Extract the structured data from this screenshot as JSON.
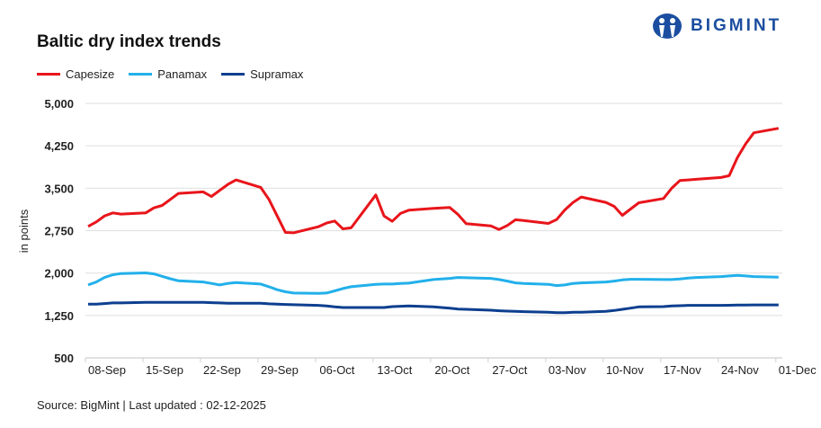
{
  "header": {
    "logo_text": "BIGMINT"
  },
  "source": "Source: BigMint | Last updated : 02-12-2025",
  "chart_data": {
    "type": "line",
    "title": "Baltic dry index trends",
    "xlabel": "",
    "ylabel": "in points",
    "ylim": [
      500,
      5000
    ],
    "yticks": [
      "500",
      "1,250",
      "2,000",
      "2,750",
      "3,500",
      "4,250",
      "5,000"
    ],
    "ytick_values": [
      500,
      1250,
      2000,
      2750,
      3500,
      4250,
      5000
    ],
    "xticks": [
      "08-Sep",
      "15-Sep",
      "22-Sep",
      "29-Sep",
      "06-Oct",
      "13-Oct",
      "20-Oct",
      "27-Oct",
      "03-Nov",
      "10-Nov",
      "17-Nov",
      "24-Nov",
      "01-Dec"
    ],
    "xtick_dates": [
      "2025-09-08",
      "2025-09-15",
      "2025-09-22",
      "2025-09-29",
      "2025-10-06",
      "2025-10-13",
      "2025-10-20",
      "2025-10-27",
      "2025-11-03",
      "2025-11-10",
      "2025-11-17",
      "2025-11-24",
      "2025-12-01"
    ],
    "grid": true,
    "legend": "top-left",
    "x": [
      "2025-09-08",
      "2025-09-09",
      "2025-09-10",
      "2025-09-11",
      "2025-09-12",
      "2025-09-15",
      "2025-09-16",
      "2025-09-17",
      "2025-09-18",
      "2025-09-19",
      "2025-09-22",
      "2025-09-23",
      "2025-09-24",
      "2025-09-25",
      "2025-09-26",
      "2025-09-29",
      "2025-09-30",
      "2025-10-01",
      "2025-10-02",
      "2025-10-03",
      "2025-10-06",
      "2025-10-07",
      "2025-10-08",
      "2025-10-09",
      "2025-10-10",
      "2025-10-13",
      "2025-10-14",
      "2025-10-15",
      "2025-10-16",
      "2025-10-17",
      "2025-10-20",
      "2025-10-21",
      "2025-10-22",
      "2025-10-23",
      "2025-10-24",
      "2025-10-27",
      "2025-10-28",
      "2025-10-29",
      "2025-10-30",
      "2025-10-31",
      "2025-11-03",
      "2025-11-04",
      "2025-11-05",
      "2025-11-06",
      "2025-11-07",
      "2025-11-10",
      "2025-11-11",
      "2025-11-12",
      "2025-11-13",
      "2025-11-14",
      "2025-11-17",
      "2025-11-18",
      "2025-11-19",
      "2025-11-20",
      "2025-11-21",
      "2025-11-24",
      "2025-11-25",
      "2025-11-26",
      "2025-11-27",
      "2025-11-28",
      "2025-12-01"
    ],
    "series": [
      {
        "name": "Capesize",
        "color": "#e8151b",
        "values": [
          2824,
          2904,
          3010,
          3063,
          3042,
          3063,
          3153,
          3196,
          3302,
          3408,
          3435,
          3355,
          3461,
          3567,
          3647,
          3515,
          3302,
          3010,
          2718,
          2712,
          2819,
          2883,
          2920,
          2782,
          2800,
          3381,
          3010,
          2915,
          3053,
          3111,
          3143,
          3153,
          3158,
          3037,
          2872,
          2835,
          2771,
          2840,
          2942,
          2930,
          2878,
          2946,
          3116,
          3249,
          3345,
          3249,
          3180,
          3021,
          3132,
          3243,
          3318,
          3499,
          3636,
          3647,
          3658,
          3690,
          3722,
          4045,
          4284,
          4480,
          4560
        ]
      },
      {
        "name": "Panamax",
        "color": "#22b0ea",
        "values": [
          1789,
          1842,
          1922,
          1970,
          1992,
          2002,
          1985,
          1943,
          1900,
          1863,
          1842,
          1816,
          1789,
          1816,
          1832,
          1805,
          1757,
          1705,
          1668,
          1646,
          1641,
          1646,
          1684,
          1726,
          1757,
          1800,
          1805,
          1805,
          1816,
          1821,
          1885,
          1896,
          1906,
          1922,
          1917,
          1906,
          1885,
          1858,
          1826,
          1816,
          1800,
          1778,
          1789,
          1816,
          1826,
          1842,
          1858,
          1879,
          1890,
          1890,
          1885,
          1885,
          1896,
          1911,
          1922,
          1938,
          1949,
          1960,
          1949,
          1938,
          1927
        ]
      },
      {
        "name": "Supramax",
        "color": "#0d3f8f",
        "values": [
          1450,
          1450,
          1460,
          1471,
          1471,
          1482,
          1482,
          1482,
          1482,
          1482,
          1482,
          1476,
          1471,
          1466,
          1466,
          1466,
          1455,
          1450,
          1444,
          1439,
          1428,
          1418,
          1402,
          1391,
          1391,
          1391,
          1391,
          1407,
          1412,
          1418,
          1402,
          1391,
          1380,
          1364,
          1359,
          1343,
          1333,
          1327,
          1322,
          1317,
          1306,
          1300,
          1300,
          1306,
          1306,
          1322,
          1338,
          1359,
          1380,
          1402,
          1407,
          1418,
          1423,
          1428,
          1428,
          1428,
          1430,
          1434,
          1434,
          1436,
          1436
        ]
      }
    ]
  }
}
